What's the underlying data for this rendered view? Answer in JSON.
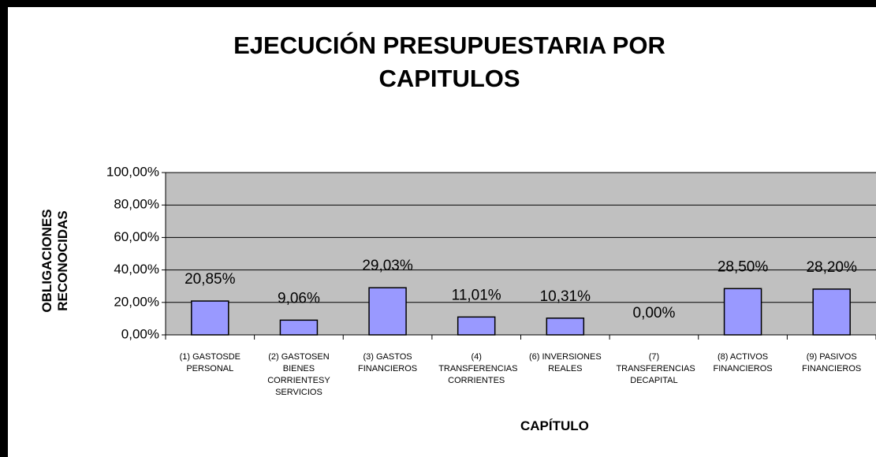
{
  "chart_data": {
    "type": "bar",
    "title": "EJECUCIÓN PRESUPUESTARIA POR CAPITULOS",
    "y_label": "OBLIGACIONES RECONOCIDAS",
    "x_label": "CAPÍTULO",
    "categories": [
      "(1) GASTOSDE PERSONAL",
      "(2) GASTOSEN BIENES CORRIENTESY SERVICIOS",
      "(3) GASTOS FINANCIEROS",
      "(4) TRANSFERENCIAS CORRIENTES",
      "(6) INVERSIONES REALES",
      "(7) TRANSFERENCIAS DECAPITAL",
      "(8) ACTIVOS FINANCIEROS",
      "(9) PASIVOS FINANCIEROS"
    ],
    "values": [
      20.85,
      9.06,
      29.03,
      11.01,
      10.31,
      0,
      28.5,
      28.2
    ],
    "value_labels": [
      "20,85%",
      "9,06%",
      "29,03%",
      "11,01%",
      "10,31%",
      "0,00%",
      "28,50%",
      "28,20%"
    ],
    "color": "#9999ff",
    "ylim": [
      0,
      100
    ],
    "yticks": [
      {
        "value": 0,
        "label": "0,00%"
      },
      {
        "value": 20,
        "label": "20,00%"
      },
      {
        "value": 40,
        "label": "40,00%"
      },
      {
        "value": 60,
        "label": "60,00%"
      },
      {
        "value": 80,
        "label": "80,00%"
      },
      {
        "value": 100,
        "label": "100,00%"
      }
    ],
    "grid": true
  }
}
